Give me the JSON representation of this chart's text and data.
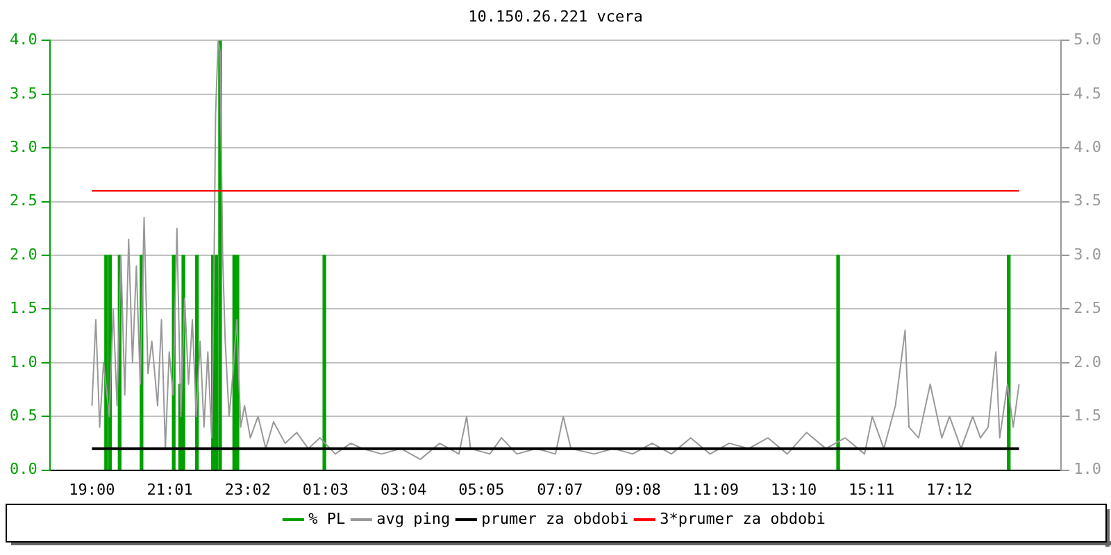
{
  "chart_data": {
    "type": "line",
    "title": "10.150.26.221 vcera",
    "xlim": [
      "--01-01T19:00",
      "--01-02T19:00"
    ],
    "xticks": [
      {
        "value": "--01-01T19:00",
        "label": "19:00"
      },
      {
        "value": "--01-01T21:01",
        "label": "21:01"
      },
      {
        "value": "--01-01T23:02",
        "label": "23:02"
      },
      {
        "value": "--01-02T01:03",
        "label": "01:03"
      },
      {
        "value": "--01-02T03:04",
        "label": "03:04"
      },
      {
        "value": "--01-02T05:05",
        "label": "05:05"
      },
      {
        "value": "--01-02T07:07",
        "label": "07:07"
      },
      {
        "value": "--01-02T09:08",
        "label": "09:08"
      },
      {
        "value": "--01-02T11:09",
        "label": "11:09"
      },
      {
        "value": "--01-02T13:10",
        "label": "13:10"
      },
      {
        "value": "--01-02T15:11",
        "label": "15:11"
      },
      {
        "value": "--01-02T17:12",
        "label": "17:12"
      }
    ],
    "ylim": [
      0,
      4
    ],
    "yticks": [
      {
        "value": 0,
        "label": "0.0"
      },
      0.5,
      {
        "value": 1,
        "label": "1.0"
      },
      1.5,
      {
        "value": 2,
        "label": "2.0"
      },
      2.5,
      {
        "value": 3,
        "label": "3.0"
      },
      3.5,
      {
        "value": 4,
        "label": "4.0"
      }
    ],
    "y2lim": [
      1,
      5
    ],
    "y2ticks": [
      {
        "value": 1,
        "label": "1.0"
      },
      1.5,
      {
        "value": 2,
        "label": "2.0"
      },
      2.5,
      {
        "value": 3,
        "label": "3.0"
      },
      3.5,
      {
        "value": 4,
        "label": "4.0"
      },
      4.5,
      {
        "value": 5,
        "label": "5.0"
      }
    ],
    "grid": "y",
    "legend": "bottom",
    "marker": "none",
    "series": [
      {
        "name": "% PL",
        "type": "bar",
        "color": "#00a000",
        "x": [
          "--01-01T19:22",
          "--01-01T19:28",
          "--01-01T19:43",
          "--01-01T20:17",
          "--01-01T21:07",
          "--01-01T21:17",
          "--01-01T21:22",
          "--01-01T21:43",
          "--01-01T22:08",
          "--01-01T22:13",
          "--01-01T22:19",
          "--01-01T22:41",
          "--01-01T22:46",
          "--01-02T01:01",
          "--01-02T14:19",
          "--01-02T18:44"
        ],
        "values": [
          2.0,
          2.0,
          2.0,
          2.0,
          2.0,
          0.8,
          2.0,
          2.0,
          2.0,
          2.0,
          4.0,
          2.0,
          2.0,
          2.0,
          2.0,
          2.0
        ]
      },
      {
        "name": "avg ping",
        "axis": "y2",
        "color": "#999999",
        "x": [
          "--01-01T19:00",
          "--01-01T19:06",
          "--01-01T19:12",
          "--01-01T19:18",
          "--01-01T19:27",
          "--01-01T19:33",
          "--01-01T19:39",
          "--01-01T19:45",
          "--01-01T19:51",
          "--01-01T19:57",
          "--01-01T20:03",
          "--01-01T20:09",
          "--01-01T20:15",
          "--01-01T20:21",
          "--01-01T20:27",
          "--01-01T20:33",
          "--01-01T20:42",
          "--01-01T20:48",
          "--01-01T20:54",
          "--01-01T21:00",
          "--01-01T21:06",
          "--01-01T21:12",
          "--01-01T21:18",
          "--01-01T21:24",
          "--01-01T21:30",
          "--01-01T21:36",
          "--01-01T21:42",
          "--01-01T21:48",
          "--01-01T21:54",
          "--01-01T22:00",
          "--01-01T22:06",
          "--01-01T22:09",
          "--01-01T22:12",
          "--01-01T22:16",
          "--01-01T22:19",
          "--01-01T22:23",
          "--01-01T22:27",
          "--01-01T22:33",
          "--01-01T22:39",
          "--01-01T22:45",
          "--01-01T22:51",
          "--01-01T22:57",
          "--01-01T23:06",
          "--01-01T23:18",
          "--01-01T23:30",
          "--01-01T23:42",
          "--01-02T00:00",
          "--01-02T00:18",
          "--01-02T00:36",
          "--01-02T00:54",
          "--01-02T01:18",
          "--01-02T01:42",
          "--01-02T02:00",
          "--01-02T02:30",
          "--01-02T03:00",
          "--01-02T03:30",
          "--01-02T04:00",
          "--01-02T04:30",
          "--01-02T04:42",
          "--01-02T04:48",
          "--01-02T05:18",
          "--01-02T05:36",
          "--01-02T06:00",
          "--01-02T06:30",
          "--01-02T07:00",
          "--01-02T07:12",
          "--01-02T07:24",
          "--01-02T08:00",
          "--01-02T08:30",
          "--01-02T09:00",
          "--01-02T09:30",
          "--01-02T10:00",
          "--01-02T10:30",
          "--01-02T11:00",
          "--01-02T11:30",
          "--01-02T12:00",
          "--01-02T12:30",
          "--01-02T13:00",
          "--01-02T13:30",
          "--01-02T14:00",
          "--01-02T14:30",
          "--01-02T15:00",
          "--01-02T15:12",
          "--01-02T15:30",
          "--01-02T15:48",
          "--01-02T16:03",
          "--01-02T16:09",
          "--01-02T16:24",
          "--01-02T16:42",
          "--01-02T17:00",
          "--01-02T17:12",
          "--01-02T17:30",
          "--01-02T17:48",
          "--01-02T18:00",
          "--01-02T18:12",
          "--01-02T18:24",
          "--01-02T18:30",
          "--01-02T18:42",
          "--01-02T18:51",
          "--01-02T19:00"
        ],
        "values": [
          1.6,
          2.4,
          1.4,
          2.0,
          1.5,
          2.5,
          1.6,
          3.0,
          1.7,
          3.15,
          2.0,
          2.9,
          1.8,
          3.35,
          1.9,
          2.2,
          1.6,
          2.4,
          1.2,
          2.1,
          1.7,
          3.25,
          1.5,
          2.6,
          1.8,
          2.4,
          1.5,
          2.2,
          1.4,
          2.1,
          1.3,
          2.5,
          4.3,
          5.0,
          4.9,
          3.0,
          2.2,
          1.5,
          1.9,
          2.4,
          1.4,
          1.6,
          1.3,
          1.5,
          1.2,
          1.45,
          1.25,
          1.35,
          1.2,
          1.3,
          1.15,
          1.25,
          1.2,
          1.15,
          1.2,
          1.1,
          1.25,
          1.15,
          1.5,
          1.2,
          1.15,
          1.3,
          1.15,
          1.2,
          1.15,
          1.5,
          1.2,
          1.15,
          1.2,
          1.15,
          1.25,
          1.15,
          1.3,
          1.15,
          1.25,
          1.2,
          1.3,
          1.15,
          1.35,
          1.2,
          1.3,
          1.15,
          1.5,
          1.2,
          1.6,
          2.3,
          1.4,
          1.3,
          1.8,
          1.3,
          1.5,
          1.2,
          1.5,
          1.3,
          1.4,
          2.1,
          1.3,
          1.8,
          1.4,
          1.8
        ]
      }
    ],
    "ref_lines": [
      {
        "axis": "y2",
        "value": 1.2,
        "label": "prumer za obdobi",
        "color": "#000000"
      },
      {
        "axis": "y2",
        "value": 3.6,
        "label": "3*prumer za obdobi",
        "color": "#ff0000"
      }
    ]
  }
}
